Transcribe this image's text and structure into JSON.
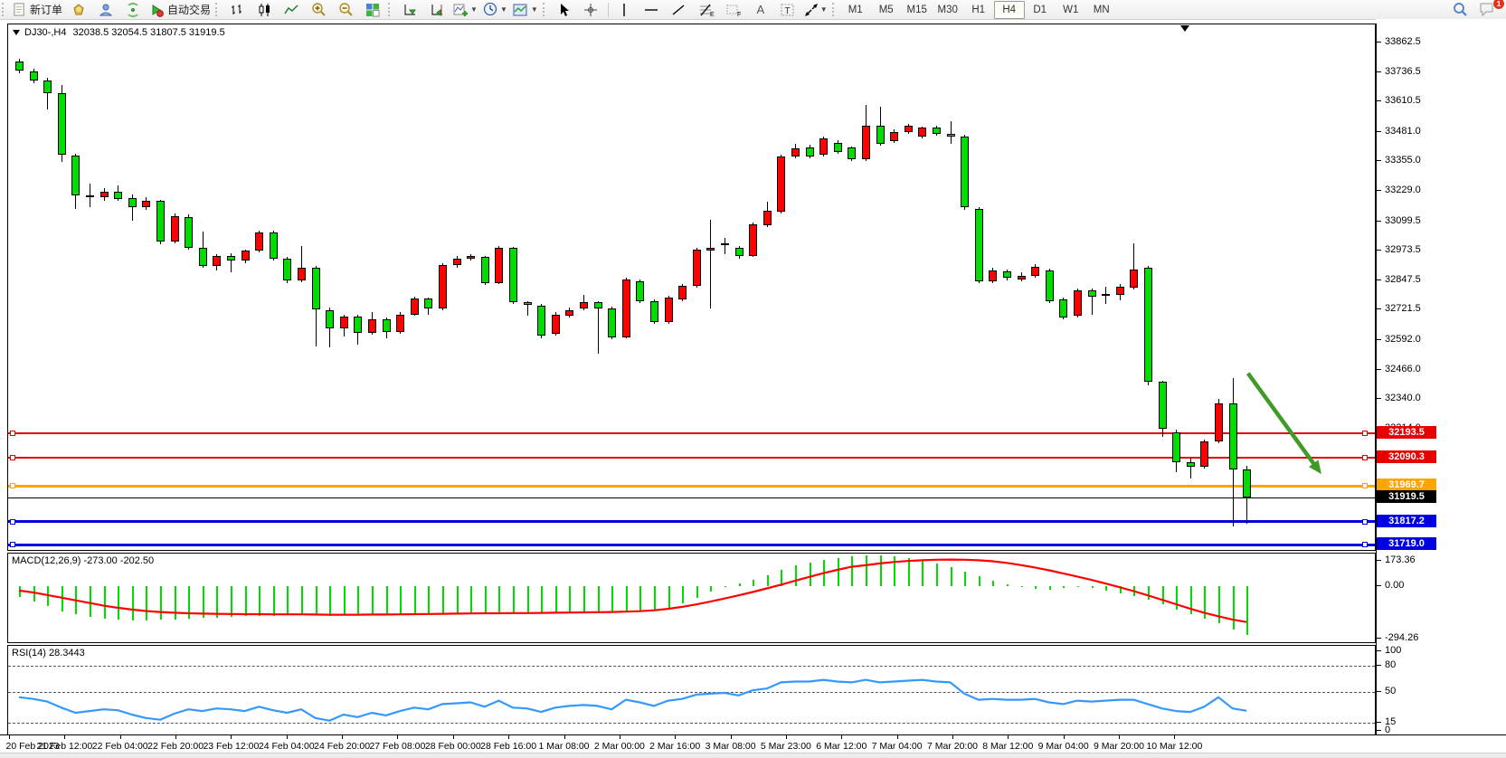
{
  "toolbar": {
    "new_order_label": "新订单",
    "auto_trading_label": "自动交易",
    "timeframes": [
      "M1",
      "M5",
      "M15",
      "M30",
      "H1",
      "H4",
      "D1",
      "W1",
      "MN"
    ],
    "active_timeframe": "H4",
    "notification_count": "1",
    "icon_glyphs": {
      "text_tool": "A",
      "label_tool": "T",
      "fibo_tool": "ƒ",
      "fibo_sub": "E",
      "channel_sub": "F"
    }
  },
  "chart": {
    "symbol_period": "DJ30-,H4",
    "ohlc_line": "32038.5 32054.5 31807.5 31919.5"
  },
  "macd_panel": {
    "label": "MACD(12,26,9) -273.00 -202.50",
    "axis_labels": [
      "173.36",
      "0.00",
      "-294.26"
    ]
  },
  "rsi_panel": {
    "label": "RSI(14) 28.3443",
    "axis_labels": [
      "100",
      "80",
      "50",
      "15",
      "0"
    ]
  },
  "chart_data": {
    "type": "candlestick",
    "title": "DJ30-,H4 32038.5 32054.5 31807.5 31919.5",
    "ylim": [
      31690,
      33940
    ],
    "grid": false,
    "price_ticks": [
      33862.5,
      33736.5,
      33610.5,
      33481.0,
      33355.0,
      33229.0,
      33099.5,
      32973.5,
      32847.5,
      32721.5,
      32592.0,
      32466.0,
      32340.0,
      32214.0
    ],
    "time_labels": [
      "20 Feb 2023",
      "21 Feb 12:00",
      "22 Feb 04:00",
      "22 Feb 20:00",
      "23 Feb 12:00",
      "24 Feb 04:00",
      "24 Feb 20:00",
      "27 Feb 08:00",
      "28 Feb 00:00",
      "28 Feb 16:00",
      "1 Mar 08:00",
      "2 Mar 00:00",
      "2 Mar 16:00",
      "3 Mar 08:00",
      "5 Mar 23:00",
      "6 Mar 12:00",
      "7 Mar 04:00",
      "7 Mar 20:00",
      "8 Mar 12:00",
      "9 Mar 04:00",
      "9 Mar 20:00",
      "10 Mar 12:00"
    ],
    "colors": {
      "up": "#ff0000",
      "down": "#00db00",
      "wick": "#000000",
      "macd_hist": "#00dc00",
      "macd_signal": "#ff0000",
      "rsi_line": "#3598fd",
      "arrow": "#3f9a28"
    },
    "candles": [
      [
        33780,
        33795,
        33731,
        33741
      ],
      [
        33741,
        33750,
        33687,
        33700
      ],
      [
        33702,
        33713,
        33575,
        33646
      ],
      [
        33646,
        33681,
        33352,
        33384
      ],
      [
        33380,
        33386,
        33152,
        33211
      ],
      [
        33211,
        33262,
        33159,
        33205
      ],
      [
        33203,
        33242,
        33188,
        33224
      ],
      [
        33225,
        33252,
        33186,
        33196
      ],
      [
        33197,
        33213,
        33101,
        33158
      ],
      [
        33159,
        33201,
        33148,
        33186
      ],
      [
        33185,
        33192,
        33001,
        33012
      ],
      [
        33012,
        33131,
        33004,
        33120
      ],
      [
        33119,
        33128,
        32978,
        32987
      ],
      [
        32987,
        33057,
        32901,
        32909
      ],
      [
        32909,
        32958,
        32890,
        32951
      ],
      [
        32951,
        32962,
        32880,
        32930
      ],
      [
        32930,
        32980,
        32922,
        32973
      ],
      [
        32973,
        33061,
        32965,
        33053
      ],
      [
        33053,
        33060,
        32930,
        32939
      ],
      [
        32939,
        32947,
        32836,
        32845
      ],
      [
        32845,
        32995,
        32838,
        32901
      ],
      [
        32901,
        32908,
        32565,
        32721
      ],
      [
        32721,
        32730,
        32560,
        32641
      ],
      [
        32641,
        32702,
        32608,
        32693
      ],
      [
        32693,
        32700,
        32574,
        32622
      ],
      [
        32622,
        32712,
        32615,
        32679
      ],
      [
        32679,
        32688,
        32600,
        32627
      ],
      [
        32627,
        32712,
        32620,
        32701
      ],
      [
        32701,
        32776,
        32694,
        32768
      ],
      [
        32768,
        32775,
        32700,
        32727
      ],
      [
        32727,
        32920,
        32719,
        32912
      ],
      [
        32912,
        32950,
        32900,
        32939
      ],
      [
        32939,
        32960,
        32930,
        32951
      ],
      [
        32947,
        32952,
        32828,
        32835
      ],
      [
        32835,
        32995,
        32830,
        32986
      ],
      [
        32986,
        32991,
        32747,
        32754
      ],
      [
        32754,
        32760,
        32696,
        32741
      ],
      [
        32739,
        32745,
        32600,
        32611
      ],
      [
        32620,
        32710,
        32612,
        32700
      ],
      [
        32696,
        32730,
        32688,
        32721
      ],
      [
        32728,
        32786,
        32720,
        32754
      ],
      [
        32754,
        32760,
        32534,
        32728
      ],
      [
        32728,
        32735,
        32595,
        32604
      ],
      [
        32604,
        32860,
        32598,
        32851
      ],
      [
        32843,
        32850,
        32750,
        32758
      ],
      [
        32758,
        32765,
        32660,
        32669
      ],
      [
        32669,
        32780,
        32662,
        32773
      ],
      [
        32766,
        32830,
        32758,
        32823
      ],
      [
        32823,
        32985,
        32816,
        32977
      ],
      [
        32972,
        33107,
        32728,
        32986
      ],
      [
        32998,
        33030,
        32960,
        33004
      ],
      [
        32986,
        32995,
        32940,
        32951
      ],
      [
        32951,
        33095,
        32945,
        33087
      ],
      [
        33083,
        33184,
        33076,
        33145
      ],
      [
        33141,
        33385,
        33134,
        33376
      ],
      [
        33376,
        33430,
        33370,
        33410
      ],
      [
        33414,
        33425,
        33368,
        33376
      ],
      [
        33383,
        33460,
        33376,
        33453
      ],
      [
        33434,
        33445,
        33388,
        33395
      ],
      [
        33414,
        33420,
        33355,
        33364
      ],
      [
        33364,
        33596,
        33357,
        33507
      ],
      [
        33507,
        33590,
        33422,
        33430
      ],
      [
        33442,
        33490,
        33435,
        33480
      ],
      [
        33480,
        33515,
        33474,
        33507
      ],
      [
        33460,
        33505,
        33453,
        33499
      ],
      [
        33499,
        33508,
        33465,
        33472
      ],
      [
        33472,
        33526,
        33430,
        33460
      ],
      [
        33460,
        33468,
        33148,
        33158
      ],
      [
        33151,
        33158,
        32834,
        32843
      ],
      [
        32843,
        32900,
        32836,
        32889
      ],
      [
        32885,
        32895,
        32845,
        32858
      ],
      [
        32851,
        32880,
        32842,
        32866
      ],
      [
        32866,
        32915,
        32858,
        32905
      ],
      [
        32889,
        32898,
        32748,
        32758
      ],
      [
        32766,
        32775,
        32680,
        32688
      ],
      [
        32696,
        32812,
        32688,
        32804
      ],
      [
        32804,
        32812,
        32700,
        32777
      ],
      [
        32788,
        32820,
        32745,
        32782
      ],
      [
        32785,
        32830,
        32760,
        32820
      ],
      [
        32816,
        33005,
        32808,
        32893
      ],
      [
        32901,
        32908,
        32400,
        32412
      ],
      [
        32414,
        32420,
        32178,
        32213
      ],
      [
        32198,
        32210,
        32028,
        32071
      ],
      [
        32071,
        32085,
        32001,
        32051
      ],
      [
        32051,
        32168,
        32043,
        32159
      ],
      [
        32159,
        32341,
        32150,
        32321
      ],
      [
        32321,
        32429,
        31795,
        32040
      ],
      [
        32038.5,
        32054.5,
        31807.5,
        31919.5
      ]
    ],
    "horizontal_lines": [
      {
        "price": 32193.5,
        "label": "32193.5",
        "color": "#e60000",
        "width": 2,
        "handles": true
      },
      {
        "price": 32090.3,
        "label": "32090.3",
        "color": "#e60000",
        "width": 2,
        "handles": true
      },
      {
        "price": 31969.7,
        "label": "31969.7",
        "color": "#ffa500",
        "width": 3,
        "handles": true
      },
      {
        "price": 31919.5,
        "label": "31919.5",
        "color": "#000000",
        "width": 1,
        "handles": false
      },
      {
        "price": 31817.2,
        "label": "31817.2",
        "color": "#0000e0",
        "width": 3,
        "handles": true
      },
      {
        "price": 31719.0,
        "label": "31719.0",
        "color": "#0000e0",
        "width": 3,
        "handles": true
      }
    ],
    "arrow_annotation": {
      "from_bar": 87.1,
      "from_price": 32450,
      "to_bar": 92.3,
      "to_price": 32020
    },
    "macd": {
      "params": "12,26,9",
      "main_value": -273.0,
      "signal_value": -202.5,
      "range": [
        -294.26,
        173.36
      ],
      "hist": [
        -60,
        -85,
        -110,
        -140,
        -160,
        -175,
        -185,
        -190,
        -195,
        -193,
        -190,
        -188,
        -185,
        -180,
        -176,
        -172,
        -170,
        -168,
        -166,
        -163,
        -162,
        -165,
        -168,
        -165,
        -162,
        -160,
        -158,
        -157,
        -156,
        -155,
        -154,
        -153,
        -152,
        -153,
        -155,
        -157,
        -155,
        -152,
        -150,
        -148,
        -147,
        -148,
        -150,
        -148,
        -143,
        -135,
        -120,
        -95,
        -65,
        -30,
        -5,
        15,
        35,
        60,
        90,
        115,
        135,
        150,
        160,
        168,
        173,
        172,
        168,
        158,
        145,
        128,
        105,
        80,
        55,
        30,
        10,
        -5,
        -15,
        -20,
        -12,
        -2,
        -10,
        -25,
        -40,
        -55,
        -75,
        -100,
        -130,
        -160,
        -185,
        -210,
        -245,
        -273
      ],
      "signal": [
        -25,
        -35,
        -50,
        -65,
        -80,
        -95,
        -110,
        -122,
        -132,
        -140,
        -146,
        -150,
        -153,
        -155,
        -156,
        -157,
        -158,
        -158,
        -159,
        -159,
        -159,
        -160,
        -161,
        -161,
        -161,
        -160,
        -160,
        -159,
        -158,
        -157,
        -156,
        -155,
        -154,
        -153,
        -153,
        -152,
        -152,
        -151,
        -150,
        -149,
        -148,
        -147,
        -146,
        -144,
        -141,
        -136,
        -128,
        -117,
        -103,
        -87,
        -70,
        -52,
        -33,
        -13,
        8,
        30,
        52,
        73,
        92,
        109,
        118,
        128,
        136,
        142,
        146,
        149,
        150,
        149,
        146,
        140,
        131,
        119,
        105,
        89,
        72,
        54,
        35,
        15,
        -6,
        -28,
        -52,
        -77,
        -102,
        -127,
        -150,
        -170,
        -188,
        -202.5
      ]
    },
    "rsi": {
      "period": 14,
      "value": 28.3443,
      "levels": [
        80,
        50,
        15
      ],
      "series": [
        44,
        42,
        39,
        32,
        26,
        28,
        30,
        29,
        24,
        20,
        18,
        25,
        30,
        28,
        31,
        30,
        28,
        33,
        29,
        26,
        30,
        20,
        17,
        24,
        21,
        26,
        23,
        28,
        32,
        30,
        36,
        37,
        38,
        33,
        40,
        32,
        31,
        27,
        32,
        34,
        35,
        34,
        30,
        41,
        38,
        34,
        40,
        42,
        47,
        48,
        49,
        46,
        52,
        54,
        61,
        62,
        62,
        64,
        62,
        61,
        64,
        61,
        62,
        63,
        64,
        62,
        61,
        48,
        41,
        42,
        41,
        41,
        42,
        38,
        36,
        40,
        39,
        40,
        41,
        41,
        36,
        31,
        28,
        27,
        33,
        44,
        31,
        28.34
      ]
    }
  }
}
